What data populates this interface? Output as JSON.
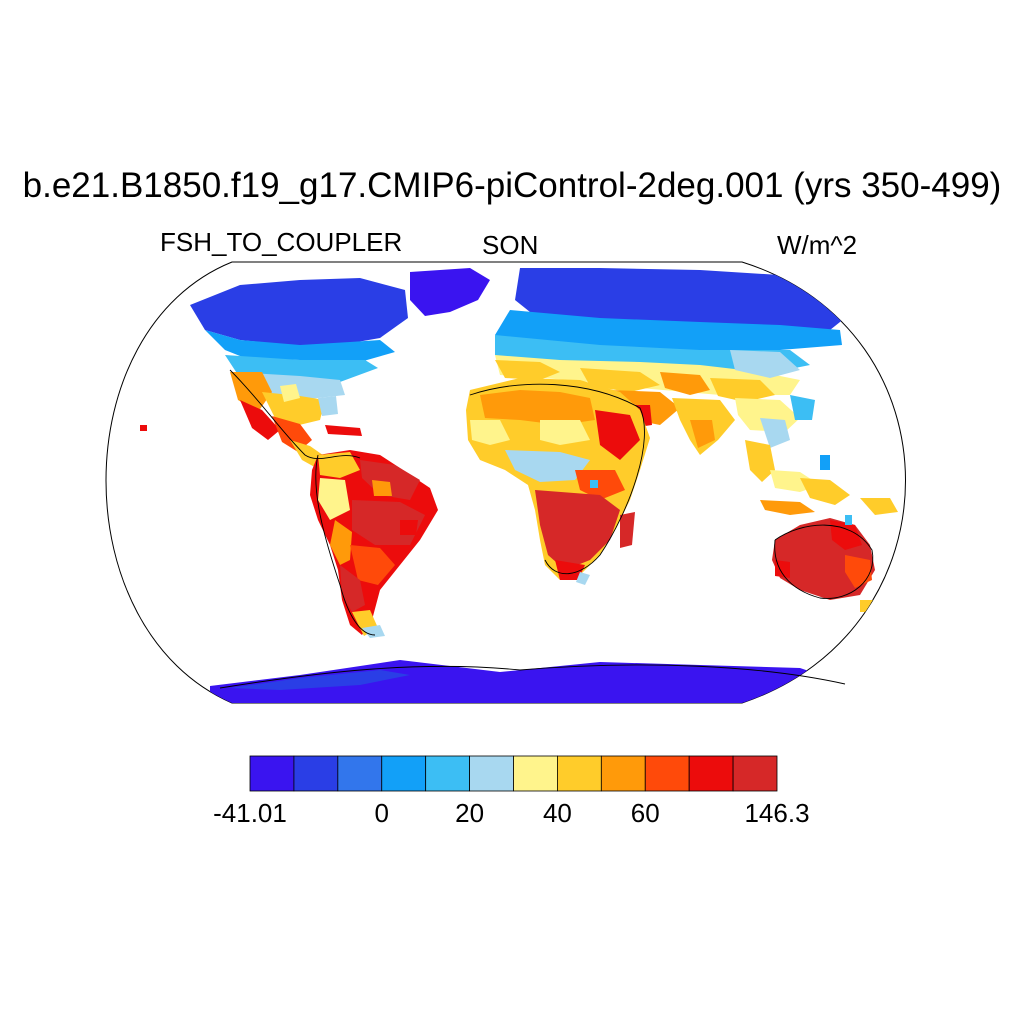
{
  "title": "b.e21.B1850.f19_g17.CMIP6-piControl-2deg.001 (yrs 350-499)",
  "left_label": "FSH_TO_COUPLER",
  "center_label": "SON",
  "right_label": "W/m^2",
  "projection": "robinson",
  "colorbar": {
    "colors": [
      "#3a14f0",
      "#2a3ee6",
      "#3276ec",
      "#12a0f8",
      "#3cbef4",
      "#a8d8f0",
      "#fff48c",
      "#ffcc2a",
      "#ff9a0a",
      "#ff4a0a",
      "#ec0c0c",
      "#d62828"
    ],
    "labels": [
      {
        "text": "-41.01",
        "boundary": 0
      },
      {
        "text": "0",
        "boundary": 3
      },
      {
        "text": "20",
        "boundary": 5
      },
      {
        "text": "40",
        "boundary": 7
      },
      {
        "text": "60",
        "boundary": 9
      },
      {
        "text": "146.3",
        "boundary": 12
      }
    ]
  }
}
